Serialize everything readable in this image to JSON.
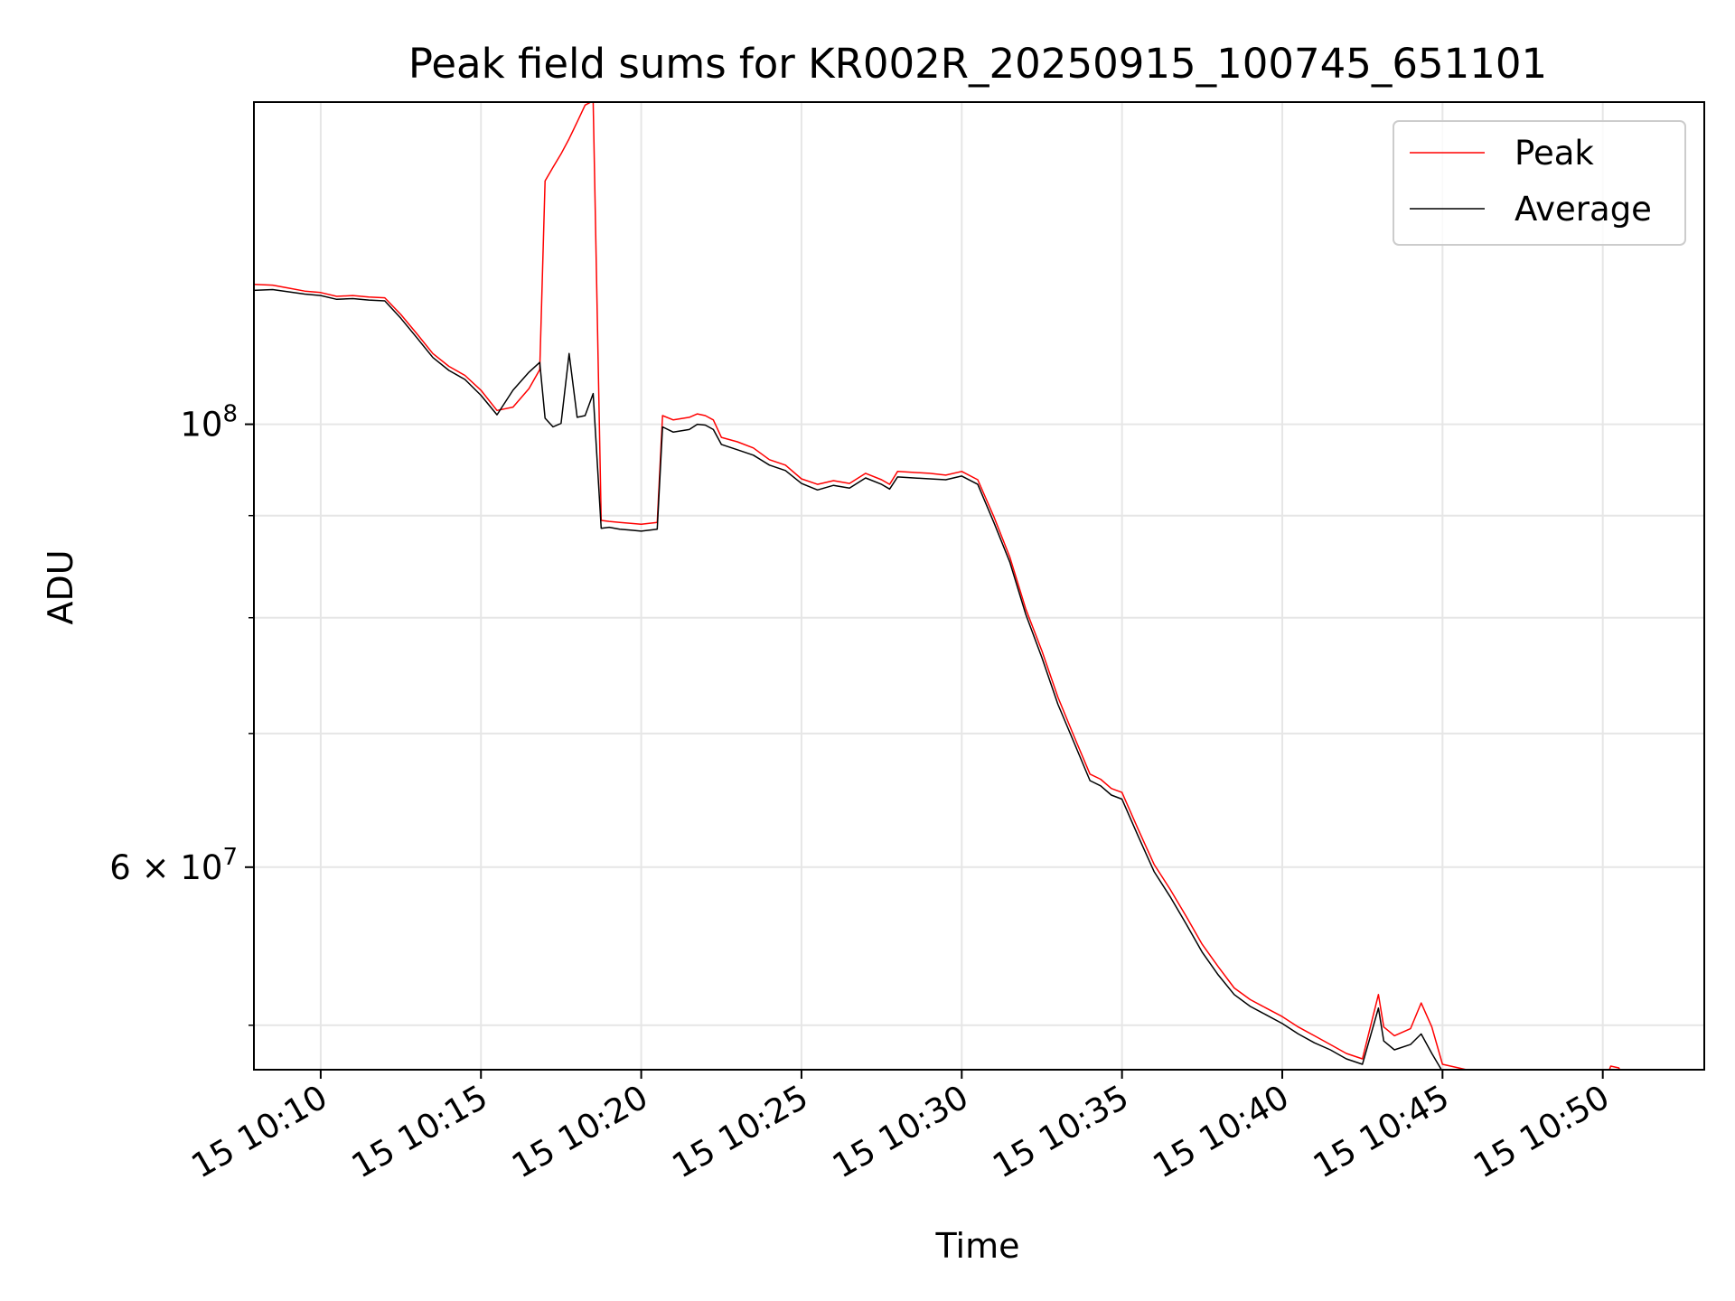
{
  "chart_data": {
    "type": "line",
    "title": "Peak field sums for KR002R_20250915_100745_651101",
    "xlabel": "Time",
    "ylabel": "ADU",
    "yscale": "log",
    "ylim": [
      47500000,
      145000000
    ],
    "xlim": [
      "15 10:07:55",
      "15 10:53:10"
    ],
    "x_tick_labels": [
      "15 10:10",
      "15 10:15",
      "15 10:20",
      "15 10:25",
      "15 10:30",
      "15 10:35",
      "15 10:40",
      "15 10:45",
      "15 10:50"
    ],
    "y_tick_labels": [
      {
        "value": 100000000,
        "base": "10",
        "exp": "8",
        "prefix": ""
      },
      {
        "value": 60000000,
        "base": "10",
        "exp": "7",
        "prefix": "6 × "
      }
    ],
    "grid": true,
    "legend": {
      "position": "top-right",
      "entries": [
        "Peak",
        "Average"
      ]
    },
    "series": [
      {
        "name": "Peak",
        "color": "#ff0000",
        "x": [
          "15 10:07:55",
          "15 10:08:30",
          "15 10:09:00",
          "15 10:09:30",
          "15 10:10:00",
          "15 10:10:30",
          "15 10:11:00",
          "15 10:11:30",
          "15 10:12:00",
          "15 10:12:30",
          "15 10:13:00",
          "15 10:13:30",
          "15 10:14:00",
          "15 10:14:30",
          "15 10:15:00",
          "15 10:15:30",
          "15 10:16:00",
          "15 10:16:30",
          "15 10:16:50",
          "15 10:17:00",
          "15 10:17:15",
          "15 10:17:30",
          "15 10:17:45",
          "15 10:18:00",
          "15 10:18:15",
          "15 10:18:30",
          "15 10:18:45",
          "15 10:19:00",
          "15 10:19:20",
          "15 10:19:40",
          "15 10:20:00",
          "15 10:20:30",
          "15 10:20:40",
          "15 10:21:00",
          "15 10:21:30",
          "15 10:21:45",
          "15 10:22:00",
          "15 10:22:15",
          "15 10:22:30",
          "15 10:23:00",
          "15 10:23:30",
          "15 10:24:00",
          "15 10:24:30",
          "15 10:25:00",
          "15 10:25:30",
          "15 10:26:00",
          "15 10:26:30",
          "15 10:27:00",
          "15 10:27:30",
          "15 10:27:45",
          "15 10:28:00",
          "15 10:28:30",
          "15 10:29:00",
          "15 10:29:30",
          "15 10:30:00",
          "15 10:30:30",
          "15 10:31:00",
          "15 10:31:30",
          "15 10:32:00",
          "15 10:32:30",
          "15 10:33:00",
          "15 10:33:30",
          "15 10:34:00",
          "15 10:34:20",
          "15 10:34:40",
          "15 10:35:00",
          "15 10:35:30",
          "15 10:36:00",
          "15 10:36:30",
          "15 10:37:00",
          "15 10:37:30",
          "15 10:38:00",
          "15 10:38:30",
          "15 10:39:00",
          "15 10:39:30",
          "15 10:40:00",
          "15 10:40:30",
          "15 10:41:00",
          "15 10:41:30",
          "15 10:42:00",
          "15 10:42:30",
          "15 10:43:00",
          "15 10:43:10",
          "15 10:43:30",
          "15 10:44:00",
          "15 10:44:20",
          "15 10:44:40",
          "15 10:45:00",
          "15 10:45:30",
          "15 10:46:00",
          "15 10:46:30",
          "15 10:47:00",
          "15 10:47:30",
          "15 10:48:00",
          "15 10:48:30",
          "15 10:49:00",
          "15 10:49:30",
          "15 10:50:00",
          "15 10:50:15",
          "15 10:50:30",
          "15 10:50:45",
          "15 10:51:00",
          "15 10:51:15",
          "15 10:51:30",
          "15 10:52:00",
          "15 10:52:30",
          "15 10:53:10"
        ],
        "values": [
          117500000,
          117400000,
          117000000,
          116600000,
          116400000,
          115900000,
          116000000,
          115800000,
          115700000,
          113500000,
          111000000,
          108500000,
          106900000,
          105800000,
          104000000,
          101600000,
          102000000,
          104200000,
          106500000,
          132400000,
          134500000,
          136600000,
          139000000,
          141700000,
          144500000,
          145200000,
          89500000,
          89400000,
          89300000,
          89200000,
          89100000,
          89300000,
          101000000,
          100500000,
          100800000,
          101200000,
          101000000,
          100500000,
          98500000,
          98000000,
          97300000,
          96000000,
          95400000,
          93900000,
          93300000,
          93700000,
          93400000,
          94500000,
          93800000,
          93300000,
          94700000,
          94600000,
          94500000,
          94300000,
          94700000,
          93800000,
          89900000,
          85800000,
          80800000,
          77000000,
          73000000,
          69800000,
          66800000,
          66400000,
          65700000,
          65400000,
          62700000,
          60200000,
          58500000,
          56700000,
          54900000,
          53500000,
          52200000,
          51500000,
          51000000,
          50500000,
          49900000,
          49400000,
          48900000,
          48400000,
          48100000,
          51800000,
          49900000,
          49400000,
          49800000,
          51300000,
          49900000,
          47800000,
          47600000,
          47400000,
          47400000,
          47400000,
          47200000,
          47000000,
          46900000,
          46800000,
          46700000,
          46500000,
          47700000,
          47600000,
          46800000,
          46300000,
          46300000,
          45900000,
          45700000,
          45600000,
          45500000
        ]
      },
      {
        "name": "Average",
        "color": "#000000",
        "x": [
          "15 10:07:55",
          "15 10:08:30",
          "15 10:09:00",
          "15 10:09:30",
          "15 10:10:00",
          "15 10:10:30",
          "15 10:11:00",
          "15 10:11:30",
          "15 10:12:00",
          "15 10:12:30",
          "15 10:13:00",
          "15 10:13:30",
          "15 10:14:00",
          "15 10:14:30",
          "15 10:15:00",
          "15 10:15:30",
          "15 10:16:00",
          "15 10:16:30",
          "15 10:16:50",
          "15 10:17:00",
          "15 10:17:15",
          "15 10:17:30",
          "15 10:17:45",
          "15 10:18:00",
          "15 10:18:15",
          "15 10:18:30",
          "15 10:18:45",
          "15 10:19:00",
          "15 10:19:20",
          "15 10:19:40",
          "15 10:20:00",
          "15 10:20:30",
          "15 10:20:40",
          "15 10:21:00",
          "15 10:21:30",
          "15 10:21:45",
          "15 10:22:00",
          "15 10:22:15",
          "15 10:22:30",
          "15 10:23:00",
          "15 10:23:30",
          "15 10:24:00",
          "15 10:24:30",
          "15 10:25:00",
          "15 10:25:30",
          "15 10:26:00",
          "15 10:26:30",
          "15 10:27:00",
          "15 10:27:30",
          "15 10:27:45",
          "15 10:28:00",
          "15 10:28:30",
          "15 10:29:00",
          "15 10:29:30",
          "15 10:30:00",
          "15 10:30:30",
          "15 10:31:00",
          "15 10:31:30",
          "15 10:32:00",
          "15 10:32:30",
          "15 10:33:00",
          "15 10:33:30",
          "15 10:34:00",
          "15 10:34:20",
          "15 10:34:40",
          "15 10:35:00",
          "15 10:35:30",
          "15 10:36:00",
          "15 10:36:30",
          "15 10:37:00",
          "15 10:37:30",
          "15 10:38:00",
          "15 10:38:30",
          "15 10:39:00",
          "15 10:39:30",
          "15 10:40:00",
          "15 10:40:30",
          "15 10:41:00",
          "15 10:41:30",
          "15 10:42:00",
          "15 10:42:30",
          "15 10:43:00",
          "15 10:43:10",
          "15 10:43:30",
          "15 10:44:00",
          "15 10:44:20",
          "15 10:44:40",
          "15 10:45:00",
          "15 10:45:30",
          "15 10:46:00",
          "15 10:46:30",
          "15 10:47:00",
          "15 10:47:30",
          "15 10:48:00",
          "15 10:48:30",
          "15 10:49:00",
          "15 10:49:30",
          "15 10:50:00",
          "15 10:50:15",
          "15 10:50:30",
          "15 10:50:45",
          "15 10:51:00",
          "15 10:51:15",
          "15 10:51:30",
          "15 10:52:00",
          "15 10:52:30",
          "15 10:53:10"
        ],
        "values": [
          116700000,
          116800000,
          116500000,
          116200000,
          116000000,
          115500000,
          115600000,
          115400000,
          115300000,
          113000000,
          110500000,
          108000000,
          106400000,
          105300000,
          103400000,
          101100000,
          104000000,
          106200000,
          107400000,
          100700000,
          99700000,
          100100000,
          108500000,
          100800000,
          101000000,
          103600000,
          88700000,
          88800000,
          88600000,
          88500000,
          88400000,
          88600000,
          99700000,
          99100000,
          99400000,
          100000000,
          99900000,
          99400000,
          97700000,
          97100000,
          96500000,
          95400000,
          94800000,
          93400000,
          92700000,
          93200000,
          92900000,
          94000000,
          93300000,
          92800000,
          94100000,
          94000000,
          93900000,
          93800000,
          94200000,
          93300000,
          89300000,
          85300000,
          80300000,
          76400000,
          72400000,
          69300000,
          66300000,
          65900000,
          65200000,
          64900000,
          62200000,
          59700000,
          58000000,
          56200000,
          54400000,
          53000000,
          51800000,
          51100000,
          50600000,
          50100000,
          49500000,
          49000000,
          48600000,
          48100000,
          47800000,
          51000000,
          49100000,
          48600000,
          48900000,
          49500000,
          48400000,
          47400000,
          47200000,
          47000000,
          47000000,
          47000000,
          46900000,
          46700000,
          46600000,
          46500000,
          46400000,
          46200000,
          47100000,
          47000000,
          46400000,
          45900000,
          45900000,
          45600000,
          45400000,
          45300000,
          45200000
        ]
      }
    ]
  }
}
